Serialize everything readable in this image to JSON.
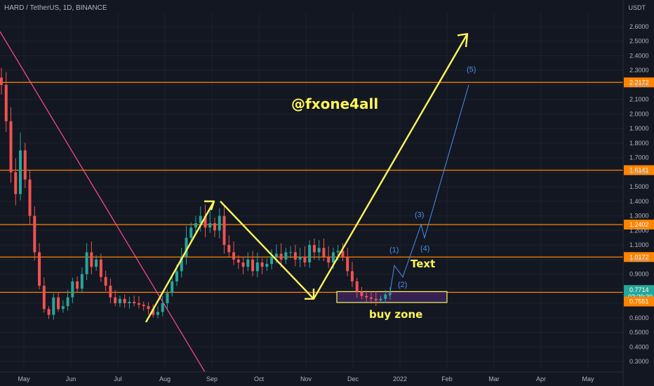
{
  "header": {
    "symbol": "HARD / TetherUS, 1D, BINANCE",
    "currency": "USDT"
  },
  "chart_data": {
    "type": "candlestick",
    "title": "HARD / TetherUS, 1D, BINANCE",
    "x_ticks": [
      "May",
      "Jun",
      "Jul",
      "Aug",
      "Sep",
      "Oct",
      "Nov",
      "Dec",
      "2022",
      "Feb",
      "Mar",
      "Apr",
      "May"
    ],
    "y_ticks": [
      2.6,
      2.5,
      2.4,
      2.3,
      2.2,
      2.1,
      2.0,
      1.9,
      1.8,
      1.7,
      1.6,
      1.5,
      1.4,
      1.3,
      1.2,
      1.1,
      1.0,
      0.9,
      0.8,
      0.7,
      0.6,
      0.5,
      0.4,
      0.3
    ],
    "y_tick_labels": [
      "2.6000",
      "2.5000",
      "2.4000",
      "2.3000",
      "2.2000",
      "2.1000",
      "2.0000",
      "1.9000",
      "1.8000",
      "1.7000",
      "1.6000",
      "1.5000",
      "1.4000",
      "1.3000",
      "1.2000",
      "1.1000",
      "1.0000",
      "0.9000",
      "0.8000",
      "0.7000",
      "0.6000",
      "0.5000",
      "0.4000",
      "0.3000"
    ],
    "ylim": [
      0.25,
      2.65
    ],
    "horizontal_levels": [
      {
        "label": "2.2172",
        "value": 2.2172
      },
      {
        "label": "1.6141",
        "value": 1.6141
      },
      {
        "label": "1.2402",
        "value": 1.2402
      },
      {
        "label": "1.0172",
        "value": 1.0172
      }
    ],
    "current_price": {
      "label": "0.7714",
      "value": 0.7714,
      "countdown": "02:29:30"
    },
    "buy_zone_low": {
      "label": "0.7551",
      "value": 0.7551
    },
    "close_series": [
      2.2,
      1.95,
      1.6,
      1.45,
      1.75,
      1.55,
      1.3,
      1.05,
      0.82,
      0.66,
      0.62,
      0.74,
      0.66,
      0.68,
      0.74,
      0.85,
      0.8,
      0.9,
      1.05,
      0.95,
      1.0,
      0.88,
      0.82,
      0.74,
      0.7,
      0.73,
      0.7,
      0.71,
      0.7,
      0.69,
      0.68,
      0.66,
      0.62,
      0.64,
      0.7,
      0.77,
      0.85,
      0.92,
      1.02,
      1.15,
      1.22,
      1.25,
      1.3,
      1.22,
      1.25,
      1.2,
      1.3,
      1.1,
      1.05,
      1.0,
      0.98,
      0.95,
      1.0,
      0.92,
      0.98,
      0.95,
      0.97,
      1.02,
      1.04,
      1.0,
      1.05,
      1.05,
      1.0,
      1.02,
      0.98,
      1.1,
      1.05,
      1.08,
      1.02,
      0.98,
      1.05,
      1.06,
      1.02,
      0.92,
      0.85,
      0.78,
      0.75,
      0.74,
      0.73,
      0.72,
      0.73,
      0.76,
      0.77
    ],
    "annotations": {
      "handle": "@fxone4all",
      "text_label": "Text",
      "buy_zone": "buy zone",
      "waves": [
        "(1)",
        "(2)",
        "(3)",
        "(4)",
        "(5)"
      ]
    },
    "colors": {
      "background": "#131722",
      "up_candle": "#26a69a",
      "down_candle": "#ef5350",
      "levels": "#ff8400",
      "trendline": "#f0488a",
      "arrows": "#fff55a",
      "waves": "#4a8fe7",
      "buy_zone_fill": "#3a2456"
    }
  }
}
